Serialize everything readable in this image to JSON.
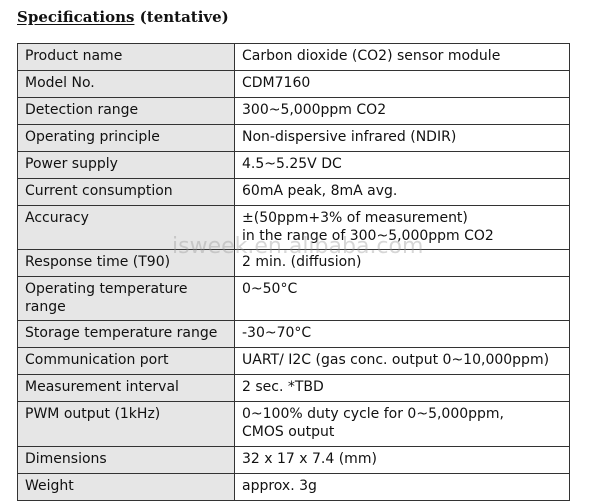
{
  "heading": {
    "main": "Specifications",
    "sub": "(tentative)"
  },
  "rows": [
    {
      "label": "Product name",
      "value": [
        "Carbon dioxide (CO2) sensor module"
      ]
    },
    {
      "label": "Model No.",
      "value": [
        "CDM7160"
      ]
    },
    {
      "label": "Detection range",
      "value": [
        "300~5,000ppm CO2"
      ]
    },
    {
      "label": "Operating principle",
      "value": [
        "Non-dispersive infrared (NDIR)"
      ]
    },
    {
      "label": "Power supply",
      "value": [
        "4.5~5.25V DC"
      ]
    },
    {
      "label": "Current consumption",
      "value": [
        "60mA peak, 8mA avg."
      ]
    },
    {
      "label": "Accuracy",
      "value": [
        "±(50ppm+3% of measurement)",
        "in the range of 300~5,000ppm CO2"
      ]
    },
    {
      "label": "Response time (T90)",
      "value": [
        "2 min. (diffusion)"
      ]
    },
    {
      "label": "Operating temperature range",
      "value": [
        "0~50°C"
      ]
    },
    {
      "label": "Storage temperature range",
      "value": [
        "-30~70°C"
      ]
    },
    {
      "label": "Communication port",
      "value": [
        "UART/ I2C (gas conc. output 0~10,000ppm)"
      ]
    },
    {
      "label": "Measurement interval",
      "value": [
        "2 sec. *TBD"
      ]
    },
    {
      "label": "PWM output (1kHz)",
      "value": [
        "0~100% duty cycle for 0~5,000ppm,",
        "CMOS output"
      ]
    },
    {
      "label": "Dimensions",
      "value": [
        "32 x 17 x 7.4 (mm)"
      ]
    },
    {
      "label": "Weight",
      "value": [
        "approx. 3g"
      ]
    }
  ],
  "watermark": "isweek.en.alibaba.com"
}
